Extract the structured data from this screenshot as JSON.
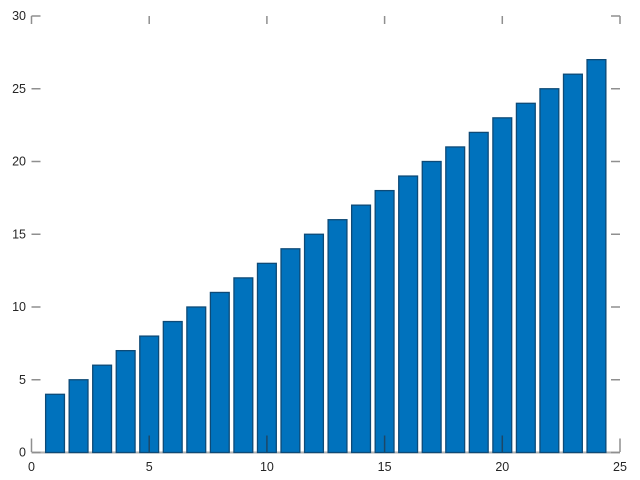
{
  "figure": {
    "background": "#ffffff"
  },
  "chart_data": {
    "type": "bar",
    "title": "",
    "xlabel": "",
    "ylabel": "",
    "x": [
      1,
      2,
      3,
      4,
      5,
      6,
      7,
      8,
      9,
      10,
      11,
      12,
      13,
      14,
      15,
      16,
      17,
      18,
      19,
      20,
      21,
      22,
      23,
      24
    ],
    "values": [
      4,
      5,
      6,
      7,
      8,
      9,
      10,
      11,
      12,
      13,
      14,
      15,
      16,
      17,
      18,
      19,
      20,
      21,
      22,
      23,
      24,
      25,
      26,
      27
    ],
    "xlim": [
      0,
      25
    ],
    "ylim": [
      0,
      30
    ],
    "xticks": [
      0,
      5,
      10,
      15,
      20,
      25
    ],
    "yticks": [
      0,
      5,
      10,
      15,
      20,
      25,
      30
    ],
    "bar_width_fraction": 0.8,
    "grid": false,
    "legend": null,
    "colors": {
      "bar_face": "#0072bd",
      "bar_edge": "#0d4a77",
      "tick_gray": "#8f8f8f",
      "tick_over_bar": "#1c4767",
      "baseline": "#b0b0b0",
      "tick_label": "#262626"
    }
  }
}
